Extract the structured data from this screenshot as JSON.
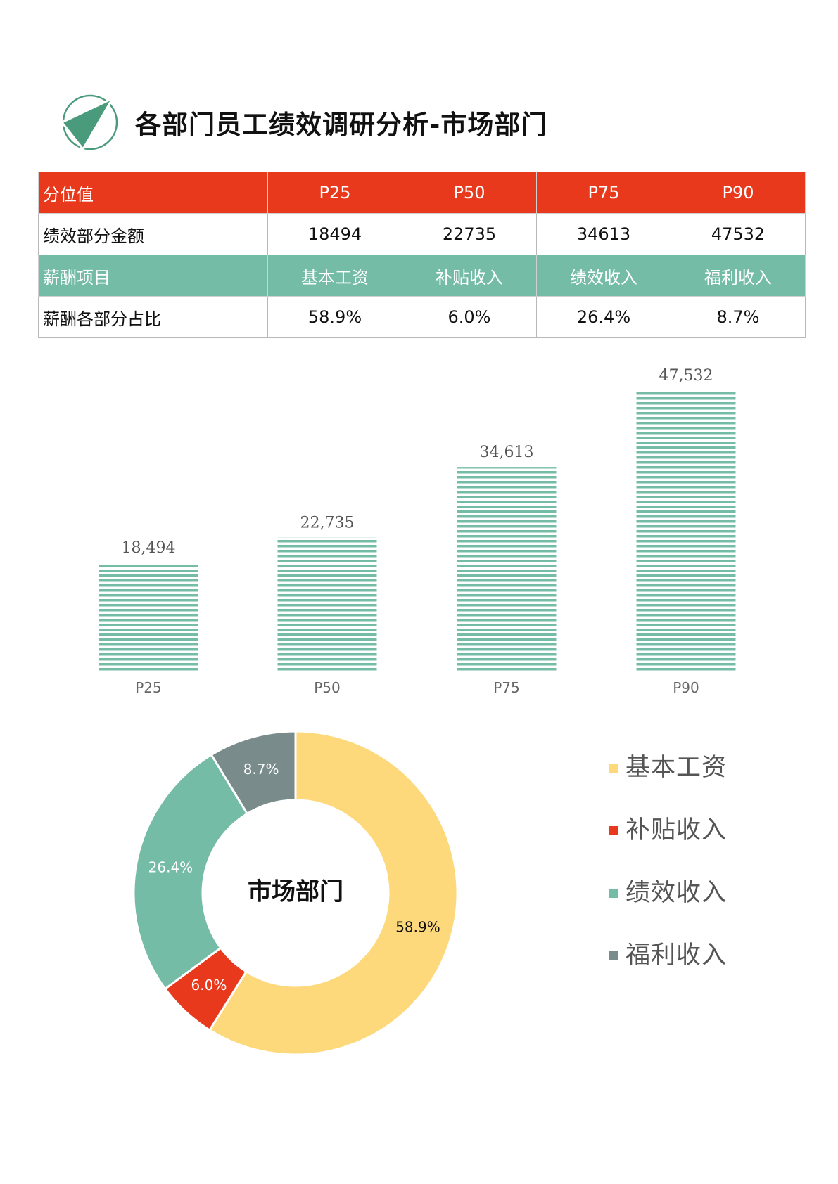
{
  "header": {
    "title": "各部门员工绩效调研分析-市场部门"
  },
  "table": {
    "row1": {
      "label": "分位值",
      "cells": [
        "P25",
        "P50",
        "P75",
        "P90"
      ]
    },
    "row2": {
      "label": "绩效部分金额",
      "cells": [
        "18494",
        "22735",
        "34613",
        "47532"
      ]
    },
    "row3": {
      "label": "薪酬项目",
      "cells": [
        "基本工资",
        "补贴收入",
        "绩效收入",
        "福利收入"
      ]
    },
    "row4": {
      "label": "薪酬各部分占比",
      "cells": [
        "58.9%",
        "6.0%",
        "26.4%",
        "8.7%"
      ]
    }
  },
  "colors": {
    "red": "#e8391d",
    "green": "#74bca6",
    "yellow": "#fdd97c",
    "gray": "#7a8b8c",
    "logo_green": "#4a9b7c"
  },
  "chart_data": [
    {
      "type": "bar",
      "categories": [
        "P25",
        "P50",
        "P75",
        "P90"
      ],
      "values": [
        18494,
        22735,
        34613,
        47532
      ],
      "data_labels": [
        "18,494",
        "22,735",
        "34,613",
        "47,532"
      ],
      "fill": "horizontal-stripes",
      "color": "#74bca6",
      "grid": false,
      "legend": "none",
      "ylim": [
        0,
        50000
      ]
    },
    {
      "type": "pie",
      "variant": "donut",
      "center_label": "市场部门",
      "slices": [
        {
          "name": "基本工资",
          "value": 58.9,
          "label": "58.9%",
          "color": "#fdd97c"
        },
        {
          "name": "补贴收入",
          "value": 6.0,
          "label": "6.0%",
          "color": "#e8391d"
        },
        {
          "name": "绩效收入",
          "value": 26.4,
          "label": "26.4%",
          "color": "#74bca6"
        },
        {
          "name": "福利收入",
          "value": 8.7,
          "label": "8.7%",
          "color": "#7a8b8c"
        }
      ],
      "legend": "right"
    }
  ]
}
